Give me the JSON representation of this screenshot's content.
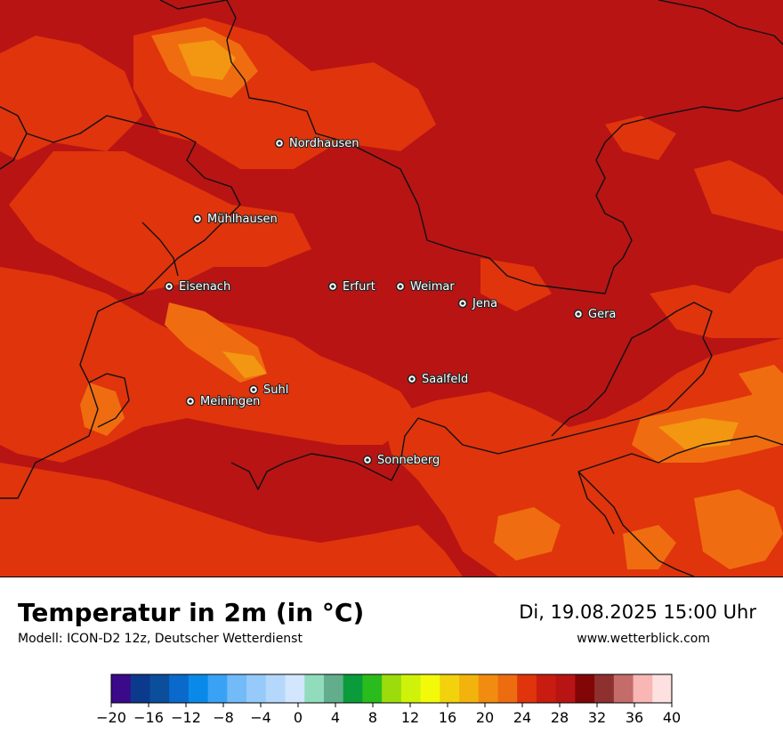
{
  "title": "Temperatur in 2m (in °C)",
  "subtitle": "Modell: ICON-D2 12z, Deutscher Wetterdienst",
  "datetime": "Di, 19.08.2025 15:00 Uhr",
  "source_url": "www.wetterblick.com",
  "cities": [
    "Nordhausen",
    "Mühlhausen",
    "Eisenach",
    "Erfurt",
    "Weimar",
    "Jena",
    "Gera",
    "Suhl",
    "Meiningen",
    "Saalfeld",
    "Sonneberg"
  ],
  "colors": {
    "base": "#b81414",
    "warm": "#e0340c",
    "warmer": "#ef6d10",
    "hot": "#f39612",
    "border": "#111111"
  },
  "legend": {
    "min": -20,
    "max": 40,
    "step": 2,
    "tick_labels": [
      "−20",
      "−16",
      "−12",
      "−8",
      "−4",
      "0",
      "4",
      "8",
      "12",
      "16",
      "20",
      "24",
      "28",
      "32",
      "36",
      "40"
    ],
    "colors": [
      "#3b0a8a",
      "#0b3a8c",
      "#0a4e9c",
      "#0a6acc",
      "#0a8ae8",
      "#3aa2f4",
      "#72baf8",
      "#96cafa",
      "#b4d8fb",
      "#d2e6fd",
      "#92dcbe",
      "#62ae8c",
      "#0a9c3a",
      "#2abc1c",
      "#9cdc0c",
      "#cef20a",
      "#f2fa0a",
      "#f2d20c",
      "#f2b40c",
      "#f28c10",
      "#ee6c10",
      "#e0340c",
      "#c81c10",
      "#b81414",
      "#820606",
      "#8e302e",
      "#c46c6a",
      "#f8b6b4",
      "#fde0e0"
    ]
  }
}
